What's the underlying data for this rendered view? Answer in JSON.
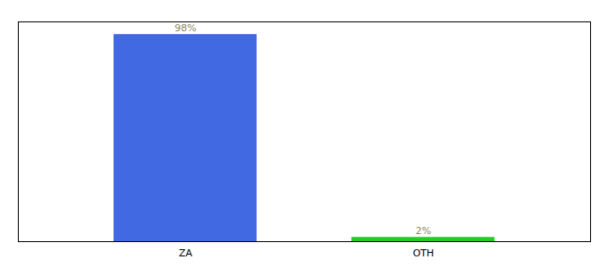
{
  "chart_data": {
    "type": "bar",
    "categories": [
      "ZA",
      "OTH"
    ],
    "values": [
      98,
      2
    ],
    "value_labels": [
      "98%",
      "2%"
    ],
    "colors": [
      "#4169e1",
      "#22cc22"
    ],
    "ylim": [
      0,
      104
    ],
    "yticks": [],
    "grid": false,
    "data_labels": true,
    "tick_labels": "x"
  }
}
